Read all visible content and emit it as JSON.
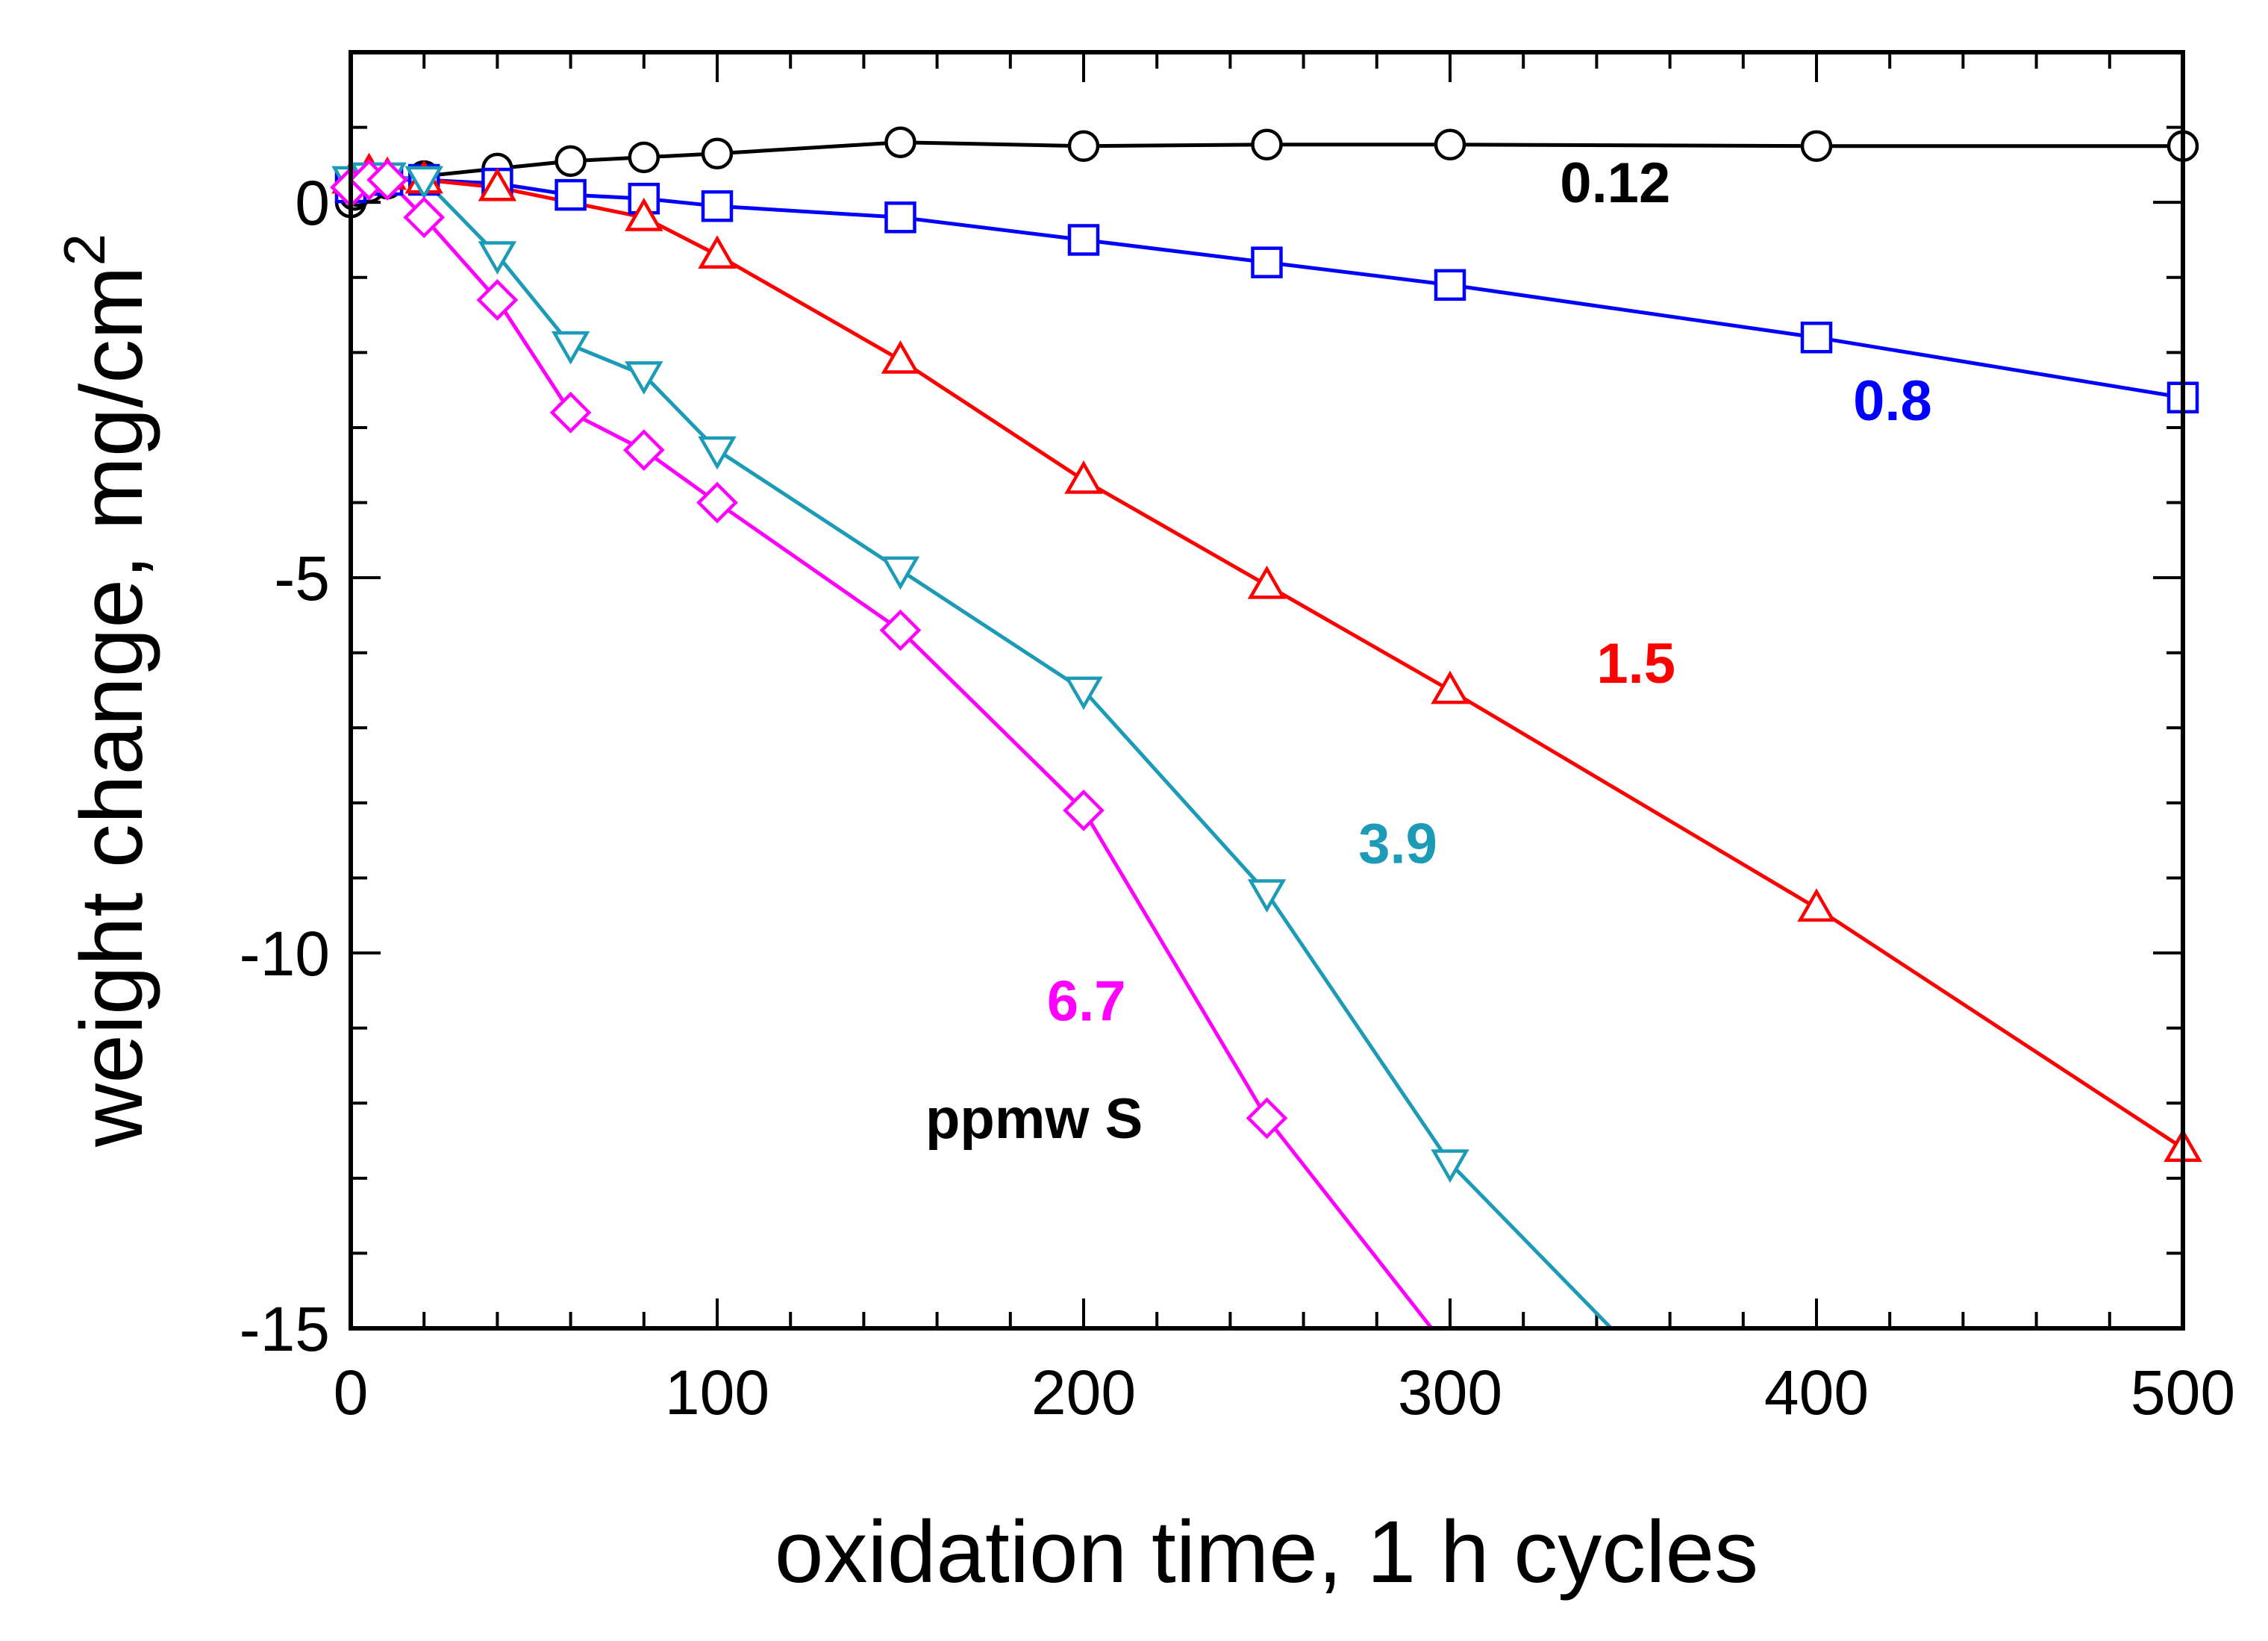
{
  "chart_data": {
    "type": "line",
    "title": "",
    "xlabel": "oxidation time, 1 h  cycles",
    "ylabel_main": "weight change,  mg/cm",
    "ylabel_superscript": "2",
    "xlim": [
      0,
      500
    ],
    "ylim": [
      -15,
      2
    ],
    "x_ticks": [
      0,
      100,
      200,
      300,
      400,
      500
    ],
    "x_tick_labels": [
      "0",
      "100",
      "200",
      "300",
      "400",
      "500"
    ],
    "y_ticks": [
      0,
      -5,
      -10,
      -15
    ],
    "y_tick_labels": [
      "0",
      "-5",
      "-10",
      "-15"
    ],
    "grid": false,
    "annotation": "ppmw S",
    "series": [
      {
        "name": "0.12",
        "color": "#000000",
        "marker": "circle",
        "label_at": [
          330,
          0.0
        ],
        "x": [
          0,
          1,
          2,
          5,
          10,
          20,
          40,
          60,
          80,
          100,
          150,
          200,
          250,
          300,
          400,
          500
        ],
        "y": [
          0.0,
          0.1,
          0.15,
          0.2,
          0.25,
          0.35,
          0.45,
          0.55,
          0.6,
          0.65,
          0.8,
          0.75,
          0.77,
          0.77,
          0.75,
          0.75
        ]
      },
      {
        "name": "0.8",
        "color": "#0000ff",
        "marker": "square",
        "label_at": [
          410,
          -2.9
        ],
        "x": [
          0,
          5,
          10,
          20,
          40,
          60,
          80,
          100,
          150,
          200,
          250,
          300,
          400,
          500
        ],
        "y": [
          0.2,
          0.3,
          0.3,
          0.3,
          0.25,
          0.1,
          0.05,
          -0.05,
          -0.2,
          -0.5,
          -0.8,
          -1.1,
          -1.8,
          -2.6
        ]
      },
      {
        "name": "1.5",
        "color": "#ff0000",
        "marker": "triangle-up",
        "label_at": [
          340,
          -6.4
        ],
        "x": [
          0,
          5,
          10,
          20,
          40,
          80,
          100,
          150,
          200,
          250,
          300,
          400,
          500
        ],
        "y": [
          0.3,
          0.4,
          0.35,
          0.3,
          0.2,
          -0.2,
          -0.7,
          -2.1,
          -3.7,
          -5.1,
          -6.5,
          -9.4,
          -12.6
        ]
      },
      {
        "name": "3.9",
        "color": "#1b9bb5",
        "marker": "triangle-down",
        "label_at": [
          275,
          -8.8
        ],
        "x": [
          0,
          5,
          10,
          20,
          40,
          60,
          80,
          100,
          150,
          200,
          250,
          300,
          344
        ],
        "y": [
          0.3,
          0.35,
          0.35,
          0.3,
          -0.7,
          -1.9,
          -2.3,
          -3.3,
          -4.9,
          -6.5,
          -9.2,
          -12.8,
          -15
        ]
      },
      {
        "name": "6.7",
        "color": "#ff00ff",
        "marker": "diamond",
        "label_at": [
          190,
          -10.9
        ],
        "x": [
          0,
          5,
          10,
          20,
          40,
          60,
          80,
          100,
          150,
          200,
          250,
          295
        ],
        "y": [
          0.2,
          0.3,
          0.3,
          -0.2,
          -1.3,
          -2.8,
          -3.3,
          -4.0,
          -5.7,
          -8.1,
          -12.2,
          -15
        ]
      }
    ]
  }
}
